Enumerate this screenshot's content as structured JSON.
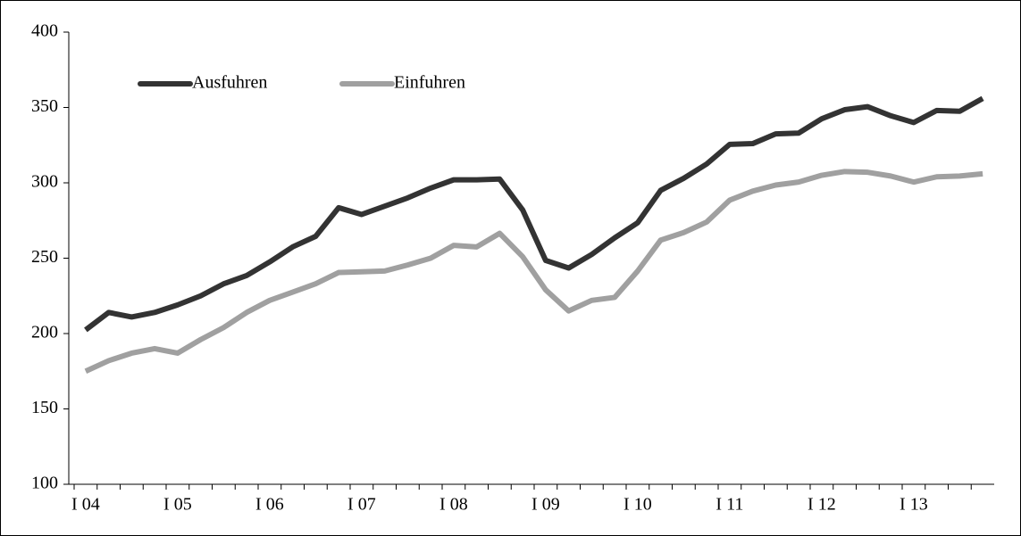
{
  "chart_data": {
    "type": "line",
    "categories": [
      "I 04",
      null,
      null,
      null,
      "I 05",
      null,
      null,
      null,
      "I 06",
      null,
      null,
      null,
      "I 07",
      null,
      null,
      null,
      "I 08",
      null,
      null,
      null,
      "I 09",
      null,
      null,
      null,
      "I 10",
      null,
      null,
      null,
      "I 11",
      null,
      null,
      null,
      "I 12",
      null,
      null,
      null,
      "I 13",
      null,
      null,
      null
    ],
    "series": [
      {
        "name": "Ausfuhren",
        "color": "#333333",
        "values": [
          202.4,
          214,
          211,
          214,
          219,
          225,
          233,
          238.5,
          247.5,
          257.5,
          264.5,
          283.5,
          279,
          284.5,
          290,
          296.5,
          302,
          302,
          302.5,
          282,
          248.5,
          243.5,
          252.5,
          263.5,
          273.5,
          295,
          303,
          312.5,
          325.5,
          326,
          332.5,
          333,
          342.5,
          348.5,
          350.5,
          344.5,
          340,
          348,
          347.5,
          356
        ]
      },
      {
        "name": "Einfuhren",
        "color": "#a0a0a0",
        "values": [
          175,
          182,
          187,
          190,
          187,
          196,
          204,
          214,
          222,
          227.5,
          233,
          240.5,
          241,
          241.5,
          245.5,
          250,
          258.5,
          257.5,
          266.5,
          251,
          229,
          215,
          222,
          224,
          241.5,
          262,
          267,
          274,
          288.5,
          294.5,
          298.5,
          300.5,
          305,
          307.5,
          307,
          304.5,
          300.5,
          304,
          304.5,
          306
        ]
      }
    ],
    "ylim": [
      100,
      400
    ],
    "yticks": [
      100,
      150,
      200,
      250,
      300,
      350,
      400
    ],
    "legend": "top-left"
  }
}
